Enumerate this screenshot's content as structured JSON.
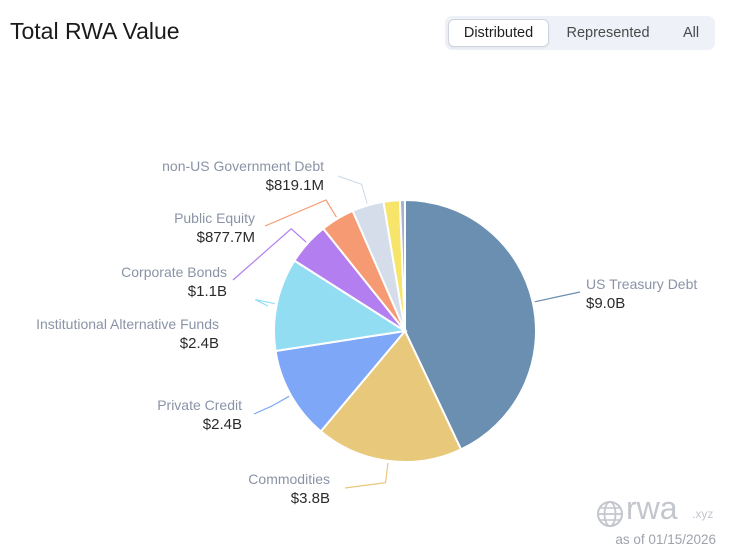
{
  "header": {
    "title": "Total RWA Value"
  },
  "tabs": [
    {
      "label": "Distributed",
      "active": true
    },
    {
      "label": "Represented",
      "active": false
    },
    {
      "label": "All",
      "active": false
    }
  ],
  "chart_data": {
    "type": "pie",
    "start_angle_deg": 0,
    "direction": "clockwise",
    "slices": [
      {
        "label": "US Treasury Debt",
        "display": "$9.0B",
        "value": 9.0,
        "color": "#6a8fb0"
      },
      {
        "label": "Commodities",
        "display": "$3.8B",
        "value": 3.8,
        "color": "#e8c87a"
      },
      {
        "label": "Private Credit",
        "display": "$2.4B",
        "value": 2.4,
        "color": "#7fa7f7"
      },
      {
        "label": "Institutional Alternative Funds",
        "display": "$2.4B",
        "value": 2.4,
        "color": "#93ddf3"
      },
      {
        "label": "Corporate Bonds",
        "display": "$1.1B",
        "value": 1.1,
        "color": "#b27ef0"
      },
      {
        "label": "Public Equity",
        "display": "$877.7M",
        "value": 0.8777,
        "color": "#f59a72"
      },
      {
        "label": "non-US Government Debt",
        "display": "$819.1M",
        "value": 0.8191,
        "color": "#d4dde9"
      },
      {
        "label": "",
        "display": "",
        "value": 0.42,
        "color": "#f7e46a"
      },
      {
        "label": "",
        "display": "",
        "value": 0.13,
        "color": "#a6b3c8"
      }
    ]
  },
  "watermark": {
    "brand": "rwa",
    "ext": ".xyz"
  },
  "footer": {
    "as_of": "as of 01/15/2026"
  }
}
